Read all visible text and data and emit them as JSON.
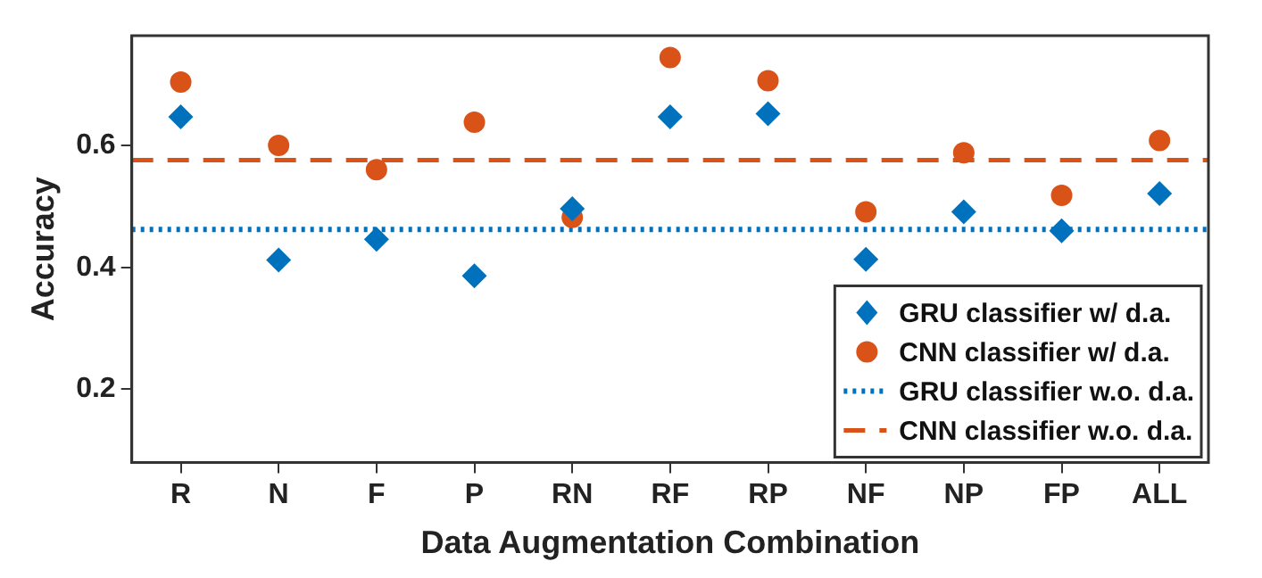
{
  "chart_data": {
    "type": "scatter",
    "xlabel": "Data Augmentation Combination",
    "ylabel": "Accuracy",
    "categories": [
      "R",
      "N",
      "F",
      "P",
      "RN",
      "RF",
      "RP",
      "NF",
      "NP",
      "FP",
      "ALL"
    ],
    "series": [
      {
        "name": "GRU classifier w/ d.a.",
        "color": "#0072bd",
        "marker": "diamond",
        "values": [
          0.647,
          0.412,
          0.446,
          0.386,
          0.496,
          0.647,
          0.652,
          0.413,
          0.491,
          0.46,
          0.521
        ]
      },
      {
        "name": "CNN classifier w/ d.a.",
        "color": "#d95319",
        "marker": "circle",
        "values": [
          0.704,
          0.6,
          0.56,
          0.638,
          0.482,
          0.744,
          0.706,
          0.491,
          0.588,
          0.518,
          0.608
        ]
      }
    ],
    "ref_lines": [
      {
        "axis": "y",
        "value": 0.462,
        "label": "GRU classifier w.o. d.a.",
        "color": "#0072bd",
        "line_style": "dotted"
      },
      {
        "axis": "y",
        "value": 0.576,
        "label": "CNN classifier w.o. d.a.",
        "color": "#d95319",
        "line_style": "dashed"
      }
    ],
    "ylim": [
      0.08,
      0.78
    ],
    "yticks": [
      0.2,
      0.4,
      0.6
    ],
    "grid": false,
    "legend": "bottom right"
  }
}
